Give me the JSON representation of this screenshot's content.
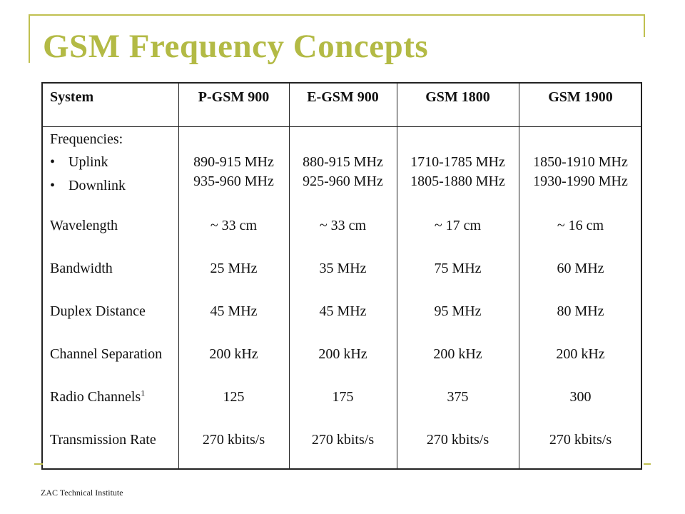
{
  "slide": {
    "title": "GSM Frequency Concepts",
    "footer": "ZAC Technical Institute",
    "accent_color": "#b3ba45"
  },
  "table": {
    "columns": [
      "System",
      "P-GSM 900",
      "E-GSM 900",
      "GSM 1800",
      "GSM 1900"
    ],
    "row_labels": {
      "frequencies": "Frequencies:",
      "uplink": "Uplink",
      "downlink": "Downlink",
      "wavelength": "Wavelength",
      "bandwidth": "Bandwidth",
      "duplex": "Duplex Distance",
      "channel_sep": "Channel Separation",
      "radio_channels": "Radio Channels",
      "radio_channels_footnote": "1",
      "transmission": "Transmission Rate"
    },
    "bullet_glyph": "•",
    "data": [
      {
        "uplink": "890-915 MHz",
        "downlink": "935-960 MHz",
        "wavelength": "~ 33 cm",
        "bandwidth": "25 MHz",
        "duplex": "45 MHz",
        "channel_sep": "200 kHz",
        "radio_channels": "125",
        "transmission": "270 kbits/s"
      },
      {
        "uplink": "880-915 MHz",
        "downlink": "925-960 MHz",
        "wavelength": "~ 33 cm",
        "bandwidth": "35 MHz",
        "duplex": "45 MHz",
        "channel_sep": "200 kHz",
        "radio_channels": "175",
        "transmission": "270 kbits/s"
      },
      {
        "uplink": "1710-1785 MHz",
        "downlink": "1805-1880 MHz",
        "wavelength": "~ 17 cm",
        "bandwidth": "75 MHz",
        "duplex": "95 MHz",
        "channel_sep": "200 kHz",
        "radio_channels": "375",
        "transmission": "270 kbits/s"
      },
      {
        "uplink": "1850-1910 MHz",
        "downlink": "1930-1990 MHz",
        "wavelength": "~ 16 cm",
        "bandwidth": "60 MHz",
        "duplex": "80 MHz",
        "channel_sep": "200 kHz",
        "radio_channels": "300",
        "transmission": "270 kbits/s"
      }
    ]
  }
}
